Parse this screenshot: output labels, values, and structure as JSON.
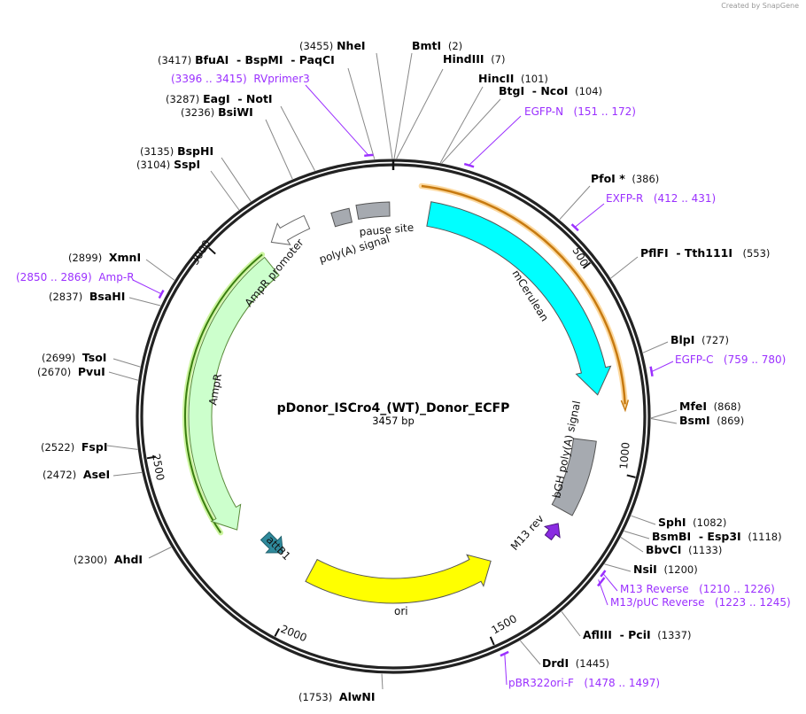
{
  "watermark": "Created by SnapGene",
  "map": {
    "title": "pDonor_ISCro4_(WT)_Donor_ECFP",
    "length": "3457 bp"
  },
  "ticks": [
    "500",
    "1000",
    "1500",
    "2000",
    "2500",
    "3000"
  ],
  "features": {
    "mcerulean": "mCerulean",
    "bgh": "bGH poly(A) signal",
    "ori": "ori",
    "ampr": "AmpR",
    "ampr_promoter": "AmpR promoter",
    "polya": "poly(A) signal",
    "pause": "pause site",
    "attb1": "attB1",
    "m13rev": "M13 rev"
  },
  "colors": {
    "mcerulean": "#00ffff",
    "ori": "#ffff00",
    "ampr": "#ccffcc",
    "primer": "#9b30ff",
    "bgh": "#a6aab0",
    "attb1": "#2f8a9c",
    "m13rev": "#8a2be2",
    "exfp": "#f0a030"
  },
  "enzymes": [
    {
      "name": "NheI",
      "pos": "(3455)"
    },
    {
      "name": "BmtI",
      "pos": "(2)"
    },
    {
      "name": "HindIII",
      "pos": "(7)"
    },
    {
      "name": "BfuAI  - BspMI  - PaqCI",
      "pos": "(3417)"
    },
    {
      "name": "HincII",
      "pos": "(101)"
    },
    {
      "name": "BtgI  - NcoI",
      "pos": "(104)"
    },
    {
      "name": "EagI  - NotI",
      "pos": "(3287)"
    },
    {
      "name": "BsiWI",
      "pos": "(3236)"
    },
    {
      "name": "BspHI",
      "pos": "(3135)"
    },
    {
      "name": "SspI",
      "pos": "(3104)"
    },
    {
      "name": "PfoI *",
      "pos": "(386)"
    },
    {
      "name": "PflFI  - Tth111I",
      "pos": "(553)"
    },
    {
      "name": "XmnI",
      "pos": "(2899)"
    },
    {
      "name": "BsaHI",
      "pos": "(2837)"
    },
    {
      "name": "BlpI",
      "pos": "(727)"
    },
    {
      "name": "TsoI",
      "pos": "(2699)"
    },
    {
      "name": "PvuI",
      "pos": "(2670)"
    },
    {
      "name": "MfeI",
      "pos": "(868)"
    },
    {
      "name": "BsmI",
      "pos": "(869)"
    },
    {
      "name": "FspI",
      "pos": "(2522)"
    },
    {
      "name": "AseI",
      "pos": "(2472)"
    },
    {
      "name": "SphI",
      "pos": "(1082)"
    },
    {
      "name": "BsmBI  - Esp3I",
      "pos": "(1118)"
    },
    {
      "name": "BbvCI",
      "pos": "(1133)"
    },
    {
      "name": "NsiI",
      "pos": "(1200)"
    },
    {
      "name": "AhdI",
      "pos": "(2300)"
    },
    {
      "name": "AflIII  - PciI",
      "pos": "(1337)"
    },
    {
      "name": "DrdI",
      "pos": "(1445)"
    },
    {
      "name": "AlwNI",
      "pos": "(1753)"
    }
  ],
  "primers": [
    {
      "name": "RVprimer3",
      "range": "(3396 .. 3415)"
    },
    {
      "name": "EGFP-N",
      "range": "(151 .. 172)"
    },
    {
      "name": "EXFP-R",
      "range": "(412 .. 431)"
    },
    {
      "name": "Amp-R",
      "range": "(2850 .. 2869)"
    },
    {
      "name": "EGFP-C",
      "range": "(759 .. 780)"
    },
    {
      "name": "M13 Reverse",
      "range": "(1210 .. 1226)"
    },
    {
      "name": "M13/pUC Reverse",
      "range": "(1223 .. 1245)"
    },
    {
      "name": "pBR322ori-F",
      "range": "(1478 .. 1497)"
    }
  ]
}
